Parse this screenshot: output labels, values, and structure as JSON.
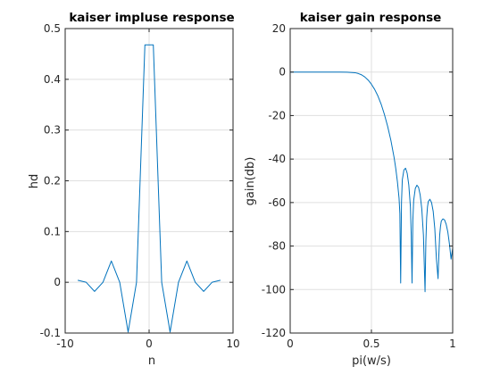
{
  "colors": {
    "series": "#0072bd",
    "grid": "#dfdfdf",
    "axis": "#262626"
  },
  "chart_data": [
    {
      "type": "line",
      "title": "kaiser impluse response",
      "xlabel": "n",
      "ylabel": "hd",
      "xlim": [
        -10,
        10
      ],
      "ylim": [
        -0.1,
        0.5
      ],
      "xticks": [
        -10,
        0,
        10
      ],
      "xtick_labels": [
        "-10",
        "0",
        "10"
      ],
      "yticks": [
        -0.1,
        0,
        0.1,
        0.2,
        0.3,
        0.4,
        0.5
      ],
      "ytick_labels": [
        "-0.1",
        "0",
        "0.1",
        "0.2",
        "0.3",
        "0.4",
        "0.5"
      ],
      "grid": true,
      "series": [
        {
          "name": "hd",
          "x": [
            -8.5,
            -7.5,
            -6.5,
            -5.5,
            -4.5,
            -3.5,
            -2.5,
            -1.5,
            -0.5,
            0.5,
            1.5,
            2.5,
            3.5,
            4.5,
            5.5,
            6.5,
            7.5,
            8.5
          ],
          "y": [
            0.004,
            0.0,
            -0.018,
            0.0,
            0.042,
            0.0,
            -0.098,
            0.0,
            0.468,
            0.468,
            0.0,
            -0.098,
            0.0,
            0.042,
            0.0,
            -0.018,
            0.0,
            0.004
          ]
        }
      ]
    },
    {
      "type": "line",
      "title": "kaiser gain response",
      "xlabel": "pi(w/s)",
      "ylabel": "gain(db)",
      "xlim": [
        0,
        1
      ],
      "ylim": [
        -120,
        20
      ],
      "xticks": [
        0,
        0.5,
        1
      ],
      "xtick_labels": [
        "0",
        "0.5",
        "1"
      ],
      "yticks": [
        -120,
        -100,
        -80,
        -60,
        -40,
        -20,
        0,
        20
      ],
      "ytick_labels": [
        "-120",
        "-100",
        "-80",
        "-60",
        "-40",
        "-20",
        "0",
        "20"
      ],
      "grid": true,
      "series": [
        {
          "name": "gain",
          "x": [
            0,
            0.1,
            0.2,
            0.3,
            0.35,
            0.4,
            0.42,
            0.44,
            0.46,
            0.48,
            0.5,
            0.52,
            0.54,
            0.56,
            0.58,
            0.6,
            0.62,
            0.64,
            0.65,
            0.66,
            0.67,
            0.675,
            0.68,
            0.685,
            0.69,
            0.7,
            0.71,
            0.72,
            0.73,
            0.74,
            0.745,
            0.75,
            0.755,
            0.76,
            0.77,
            0.78,
            0.79,
            0.8,
            0.81,
            0.82,
            0.83,
            0.835,
            0.84,
            0.845,
            0.85,
            0.86,
            0.87,
            0.88,
            0.89,
            0.9,
            0.91,
            0.915,
            0.92,
            0.925,
            0.93,
            0.94,
            0.95,
            0.96,
            0.97,
            0.98,
            0.99,
            1.0
          ],
          "y": [
            0,
            0,
            0,
            0,
            -0.05,
            -0.3,
            -0.7,
            -1.3,
            -2.3,
            -3.7,
            -5.6,
            -8.0,
            -11.0,
            -14.8,
            -19.5,
            -25.0,
            -31.5,
            -39.5,
            -44.5,
            -50.5,
            -58.0,
            -65.0,
            -97.0,
            -60.0,
            -49.5,
            -45.0,
            -44.2,
            -46.5,
            -52.0,
            -62.0,
            -75.0,
            -97.0,
            -68.0,
            -59.0,
            -53.5,
            -52.0,
            -53.0,
            -56.5,
            -63.0,
            -75.0,
            -101.0,
            -78.0,
            -67.0,
            -62.0,
            -59.5,
            -58.5,
            -60.0,
            -64.0,
            -72.0,
            -86.0,
            -95.0,
            -84.0,
            -75.0,
            -71.0,
            -68.5,
            -67.5,
            -68.0,
            -70.0,
            -73.5,
            -79.0,
            -86.0,
            -81.0
          ]
        }
      ]
    }
  ]
}
